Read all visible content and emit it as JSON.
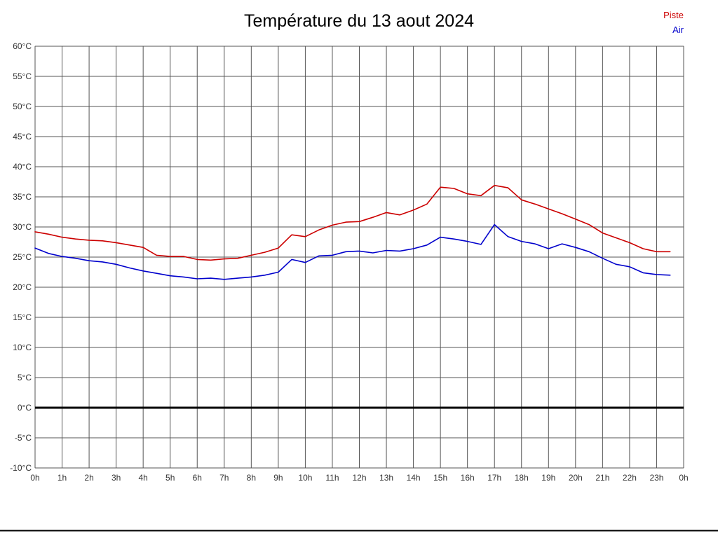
{
  "title": "Température du 13 aout 2024",
  "legend": {
    "piste_label": "Piste",
    "air_label": "Air"
  },
  "colors": {
    "piste": "#cc0000",
    "air": "#0000cc",
    "grid": "#555555",
    "axis_text": "#333333",
    "zero_line": "#000000",
    "background": "#ffffff"
  },
  "chart_data": {
    "type": "line",
    "title": "Température du 13 aout 2024",
    "xlabel": "",
    "ylabel": "",
    "xlim": [
      0,
      24
    ],
    "ylim": [
      -10,
      60
    ],
    "grid": true,
    "legend_position": "top-right",
    "x_ticks": [
      "0h",
      "1h",
      "2h",
      "3h",
      "4h",
      "5h",
      "6h",
      "7h",
      "8h",
      "9h",
      "10h",
      "11h",
      "12h",
      "13h",
      "14h",
      "15h",
      "16h",
      "17h",
      "18h",
      "19h",
      "20h",
      "21h",
      "22h",
      "23h",
      "0h"
    ],
    "y_tick_values": [
      60,
      55,
      50,
      45,
      40,
      35,
      30,
      25,
      20,
      15,
      10,
      5,
      0,
      -5,
      -10
    ],
    "y_tick_suffix": "°C",
    "series": [
      {
        "name": "Piste",
        "color": "#cc0000",
        "x": [
          0,
          0.5,
          1,
          1.5,
          2,
          2.5,
          3,
          3.5,
          4,
          4.5,
          5,
          5.5,
          6,
          6.5,
          7,
          7.5,
          8,
          8.5,
          9,
          9.5,
          10,
          10.5,
          11,
          11.5,
          12,
          12.5,
          13,
          13.5,
          14,
          14.5,
          15,
          15.5,
          16,
          16.5,
          17,
          17.5,
          18,
          18.5,
          19,
          19.5,
          20,
          20.5,
          21,
          21.5,
          22,
          22.5,
          23,
          23.5
        ],
        "values": [
          29.2,
          28.8,
          28.3,
          28.0,
          27.8,
          27.7,
          27.4,
          27.0,
          26.6,
          25.3,
          25.1,
          25.1,
          24.6,
          24.5,
          24.7,
          24.8,
          25.3,
          25.8,
          26.5,
          28.7,
          28.4,
          29.5,
          30.3,
          30.8,
          30.9,
          31.6,
          32.4,
          32.0,
          32.8,
          33.8,
          36.6,
          36.4,
          35.5,
          35.2,
          36.9,
          36.5,
          34.5,
          33.8,
          33.0,
          32.2,
          31.3,
          30.4,
          29.0,
          28.2,
          27.4,
          26.4,
          25.9,
          25.9
        ]
      },
      {
        "name": "Air",
        "color": "#0000cc",
        "x": [
          0,
          0.5,
          1,
          1.5,
          2,
          2.5,
          3,
          3.5,
          4,
          4.5,
          5,
          5.5,
          6,
          6.5,
          7,
          7.5,
          8,
          8.5,
          9,
          9.5,
          10,
          10.5,
          11,
          11.5,
          12,
          12.5,
          13,
          13.5,
          14,
          14.5,
          15,
          15.5,
          16,
          16.5,
          17,
          17.5,
          18,
          18.5,
          19,
          19.5,
          20,
          20.5,
          21,
          21.5,
          22,
          22.5,
          23,
          23.5
        ],
        "values": [
          26.5,
          25.6,
          25.1,
          24.8,
          24.4,
          24.2,
          23.8,
          23.2,
          22.7,
          22.3,
          21.9,
          21.7,
          21.4,
          21.5,
          21.3,
          21.5,
          21.7,
          22.0,
          22.5,
          24.6,
          24.1,
          25.2,
          25.3,
          25.9,
          26.0,
          25.7,
          26.1,
          26.0,
          26.4,
          27.0,
          28.3,
          28.0,
          27.6,
          27.1,
          30.4,
          28.4,
          27.6,
          27.2,
          26.4,
          27.2,
          26.6,
          25.9,
          24.8,
          23.8,
          23.4,
          22.4,
          22.1,
          22.0
        ]
      }
    ]
  }
}
